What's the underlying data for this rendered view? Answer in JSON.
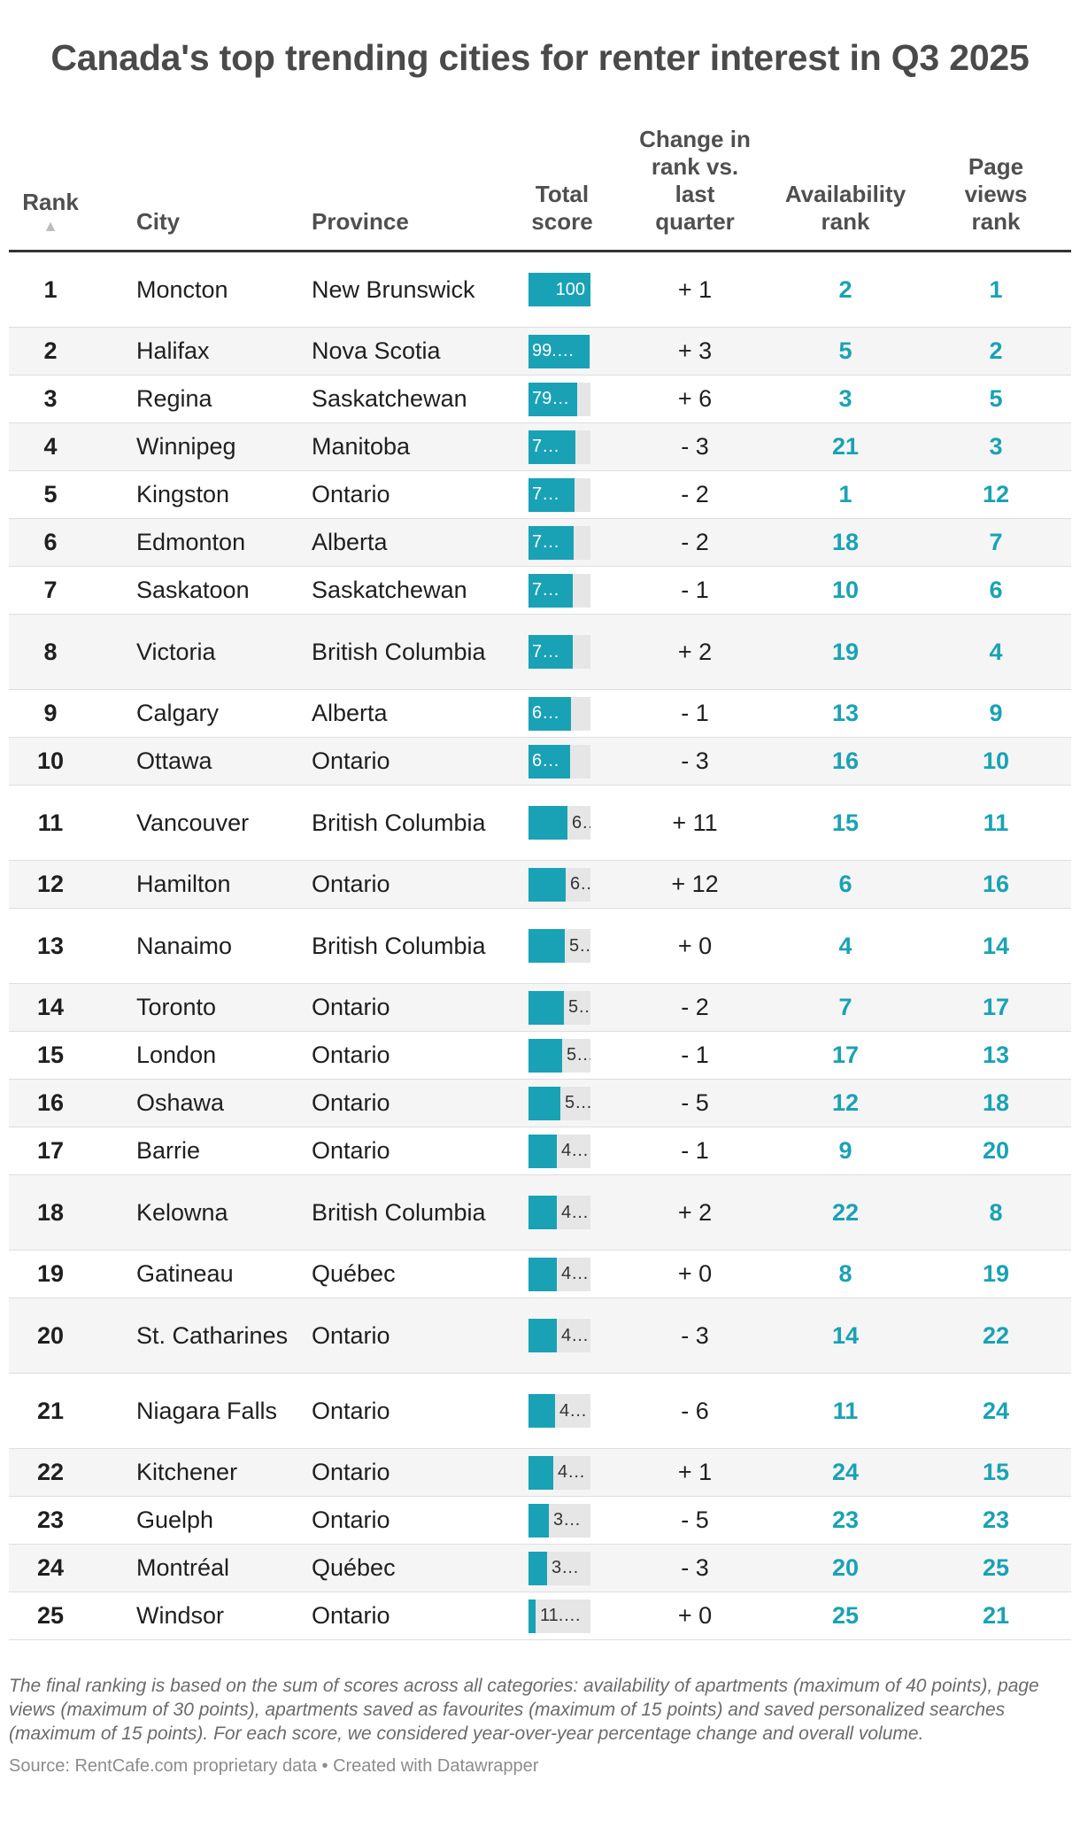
{
  "chart_data": {
    "type": "table",
    "title": "Canada's top trending cities for renter interest in Q3 2025",
    "columns": {
      "rank": "Rank",
      "city": "City",
      "province": "Province",
      "total_score": "Total score",
      "change": "Change in rank vs. last quarter",
      "availability": "Availability rank",
      "page_views": "Page views rank"
    },
    "rows": [
      {
        "rank": "1",
        "city": "Moncton",
        "province": "New Brunswick",
        "score": 100,
        "score_label": "100",
        "change": "+ 1",
        "availability": "2",
        "page_views": "1"
      },
      {
        "rank": "2",
        "city": "Halifax",
        "province": "Nova Scotia",
        "score": 99,
        "score_label": "99.…",
        "change": "+ 3",
        "availability": "5",
        "page_views": "2"
      },
      {
        "rank": "3",
        "city": "Regina",
        "province": "Saskatchewan",
        "score": 79,
        "score_label": "79…",
        "change": "+ 6",
        "availability": "3",
        "page_views": "5"
      },
      {
        "rank": "4",
        "city": "Winnipeg",
        "province": "Manitoba",
        "score": 76,
        "score_label": "7…",
        "change": "- 3",
        "availability": "21",
        "page_views": "3"
      },
      {
        "rank": "5",
        "city": "Kingston",
        "province": "Ontario",
        "score": 74,
        "score_label": "7…",
        "change": "- 2",
        "availability": "1",
        "page_views": "12"
      },
      {
        "rank": "6",
        "city": "Edmonton",
        "province": "Alberta",
        "score": 73,
        "score_label": "7…",
        "change": "- 2",
        "availability": "18",
        "page_views": "7"
      },
      {
        "rank": "7",
        "city": "Saskatoon",
        "province": "Saskatchewan",
        "score": 72,
        "score_label": "7…",
        "change": "- 1",
        "availability": "10",
        "page_views": "6"
      },
      {
        "rank": "8",
        "city": "Victoria",
        "province": "British Columbia",
        "score": 71,
        "score_label": "7…",
        "change": "+ 2",
        "availability": "19",
        "page_views": "4"
      },
      {
        "rank": "9",
        "city": "Calgary",
        "province": "Alberta",
        "score": 68,
        "score_label": "6…",
        "change": "- 1",
        "availability": "13",
        "page_views": "9"
      },
      {
        "rank": "10",
        "city": "Ottawa",
        "province": "Ontario",
        "score": 67,
        "score_label": "6…",
        "change": "- 3",
        "availability": "16",
        "page_views": "10"
      },
      {
        "rank": "11",
        "city": "Vancouver",
        "province": "British Columbia",
        "score": 63,
        "score_label": "6…",
        "change": "+ 11",
        "availability": "15",
        "page_views": "11"
      },
      {
        "rank": "12",
        "city": "Hamilton",
        "province": "Ontario",
        "score": 60,
        "score_label": "6…",
        "change": "+ 12",
        "availability": "6",
        "page_views": "16"
      },
      {
        "rank": "13",
        "city": "Nanaimo",
        "province": "British Columbia",
        "score": 58,
        "score_label": "5…",
        "change": "+ 0",
        "availability": "4",
        "page_views": "14"
      },
      {
        "rank": "14",
        "city": "Toronto",
        "province": "Ontario",
        "score": 57,
        "score_label": "5…",
        "change": "- 2",
        "availability": "7",
        "page_views": "17"
      },
      {
        "rank": "15",
        "city": "London",
        "province": "Ontario",
        "score": 54,
        "score_label": "5…",
        "change": "- 1",
        "availability": "17",
        "page_views": "13"
      },
      {
        "rank": "16",
        "city": "Oshawa",
        "province": "Ontario",
        "score": 51,
        "score_label": "5…",
        "change": "- 5",
        "availability": "12",
        "page_views": "18"
      },
      {
        "rank": "17",
        "city": "Barrie",
        "province": "Ontario",
        "score": 46,
        "score_label": "4…",
        "change": "- 1",
        "availability": "9",
        "page_views": "20"
      },
      {
        "rank": "18",
        "city": "Kelowna",
        "province": "British Columbia",
        "score": 45,
        "score_label": "4…",
        "change": "+ 2",
        "availability": "22",
        "page_views": "8"
      },
      {
        "rank": "19",
        "city": "Gatineau",
        "province": "Québec",
        "score": 45,
        "score_label": "4…",
        "change": "+ 0",
        "availability": "8",
        "page_views": "19"
      },
      {
        "rank": "20",
        "city": "St. Catharines",
        "province": "Ontario",
        "score": 45,
        "score_label": "4…",
        "change": "- 3",
        "availability": "14",
        "page_views": "22"
      },
      {
        "rank": "21",
        "city": "Niagara Falls",
        "province": "Ontario",
        "score": 43,
        "score_label": "4…",
        "change": "- 6",
        "availability": "11",
        "page_views": "24"
      },
      {
        "rank": "22",
        "city": "Kitchener",
        "province": "Ontario",
        "score": 40,
        "score_label": "4…",
        "change": "+ 1",
        "availability": "24",
        "page_views": "15"
      },
      {
        "rank": "23",
        "city": "Guelph",
        "province": "Ontario",
        "score": 33,
        "score_label": "3…",
        "change": "- 5",
        "availability": "23",
        "page_views": "23"
      },
      {
        "rank": "24",
        "city": "Montréal",
        "province": "Québec",
        "score": 30,
        "score_label": "3…",
        "change": "- 3",
        "availability": "20",
        "page_views": "25"
      },
      {
        "rank": "25",
        "city": "Windsor",
        "province": "Ontario",
        "score": 11,
        "score_label": "11.…",
        "change": "+ 0",
        "availability": "25",
        "page_views": "21"
      }
    ],
    "score_max": 100,
    "colors": {
      "bar": "#19a2b5",
      "track": "#e6e6e6",
      "rank_text": "#19a2b5"
    }
  },
  "sort_indicator": "▲",
  "footnote": "The final ranking is based on the sum of scores across all categories: availability of apartments (maximum of 40 points), page views (maximum of 30 points), apartments saved as favourites (maximum of 15 points) and saved personalized searches (maximum of 15 points). For each score, we considered year-over-year percentage change and overall volume.",
  "source": "Source: RentCafe.com proprietary data  • Created with Datawrapper"
}
